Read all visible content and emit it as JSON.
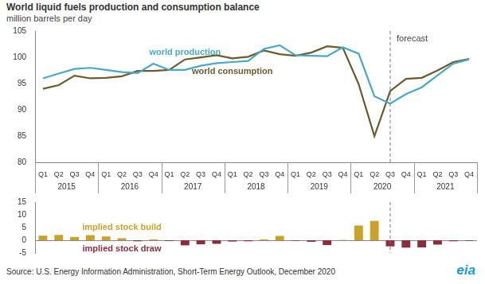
{
  "chart_data": [
    {
      "type": "line",
      "title": "World liquid fuels production and consumption balance",
      "subtitle": "million barrels per day",
      "categories": [
        "Q1",
        "Q2",
        "Q3",
        "Q4",
        "Q1",
        "Q2",
        "Q3",
        "Q4",
        "Q1",
        "Q2",
        "Q3",
        "Q4",
        "Q1",
        "Q2",
        "Q3",
        "Q4",
        "Q1",
        "Q2",
        "Q3",
        "Q4",
        "Q1",
        "Q2",
        "Q3",
        "Q4",
        "Q1",
        "Q2",
        "Q3",
        "Q4"
      ],
      "years": [
        "2015",
        "2016",
        "2017",
        "2018",
        "2019",
        "2020",
        "2021"
      ],
      "series": [
        {
          "name": "world production",
          "color": "#48a9c5",
          "values": [
            96.0,
            96.9,
            97.8,
            98.0,
            97.6,
            97.2,
            97.0,
            98.8,
            97.6,
            97.6,
            98.4,
            98.9,
            99.1,
            99.3,
            101.6,
            102.3,
            100.4,
            100.3,
            100.2,
            101.9,
            100.7,
            92.6,
            91.2,
            93.0,
            94.3,
            96.6,
            98.8,
            99.6
          ]
        },
        {
          "name": "world consumption",
          "color": "#6b5b2e",
          "values": [
            94.0,
            94.7,
            96.5,
            96.0,
            96.1,
            96.4,
            97.4,
            97.4,
            97.6,
            99.6,
            100.0,
            100.4,
            99.8,
            100.1,
            101.3,
            100.6,
            100.3,
            100.9,
            102.1,
            101.8,
            94.9,
            85.0,
            93.6,
            95.9,
            96.1,
            97.5,
            99.1,
            99.7
          ]
        }
      ],
      "ylim": [
        80,
        105
      ],
      "yticks": [
        80,
        85,
        90,
        95,
        100,
        105
      ],
      "grid": false,
      "forecast": {
        "label": "forecast",
        "x": 22
      }
    },
    {
      "type": "bar",
      "stacked": true,
      "tick_labels": "y",
      "categories": [
        "Q1",
        "Q2",
        "Q3",
        "Q4",
        "Q1",
        "Q2",
        "Q3",
        "Q4",
        "Q1",
        "Q2",
        "Q3",
        "Q4",
        "Q1",
        "Q2",
        "Q3",
        "Q4",
        "Q1",
        "Q2",
        "Q3",
        "Q4",
        "Q1",
        "Q2",
        "Q3",
        "Q4",
        "Q1",
        "Q2",
        "Q3",
        "Q4"
      ],
      "series": [
        {
          "name": "implied stock build",
          "color": "#c9a227",
          "values": [
            1.8,
            2.1,
            1.3,
            2.0,
            1.5,
            0.8,
            null,
            0.3,
            null,
            null,
            null,
            null,
            null,
            null,
            0.3,
            1.7,
            null,
            null,
            null,
            0.1,
            5.8,
            7.6,
            null,
            null,
            null,
            null,
            null,
            null
          ]
        },
        {
          "name": "implied stock draw",
          "color": "#8c2d3d",
          "values": [
            null,
            null,
            null,
            null,
            null,
            null,
            -0.4,
            null,
            -0.3,
            -2.0,
            -1.6,
            -1.4,
            -0.5,
            -0.4,
            null,
            null,
            -0.2,
            -0.6,
            -1.9,
            null,
            null,
            null,
            -2.4,
            -2.9,
            -2.8,
            -1.7,
            -0.4,
            -0.2
          ]
        }
      ],
      "ylim": [
        -5,
        15
      ],
      "yticks": [
        -5,
        0,
        5,
        10,
        15
      ],
      "grid": false,
      "forecast": {
        "x": 22
      }
    }
  ],
  "source": "Source: U.S. Energy Information Administration, Short-Term Energy Outlook, December 2020",
  "logo": "eia"
}
